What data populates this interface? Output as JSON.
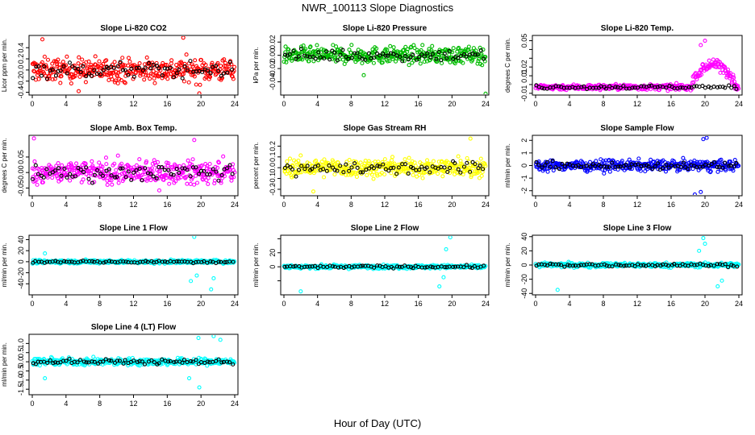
{
  "title": "NWR_100113  Slope Diagnostics",
  "xlabel": "Hour of Day (UTC)",
  "colors": {
    "overlay": "#000000"
  },
  "chart_data": [
    {
      "type": "scatter",
      "title": "Slope Li-820 CO2",
      "ylabel": "Licor ppm per min.",
      "color": "#ff0000",
      "xlim": [
        0,
        24
      ],
      "xticks": [
        0,
        4,
        8,
        12,
        16,
        20,
        24
      ],
      "ylim": [
        -0.45,
        0.62
      ],
      "yticks": [
        -0.4,
        -0.2,
        0.0,
        0.2,
        0.4
      ],
      "ytick_labels": [
        "-0.4",
        "-0.2",
        "0.0",
        "0.2",
        "0.4"
      ],
      "spread": 0.2,
      "excursions": [
        [
          1.2,
          0.55
        ],
        [
          17.9,
          0.58
        ],
        [
          19.8,
          -0.42
        ],
        [
          5.5,
          -0.38
        ]
      ]
    },
    {
      "type": "scatter",
      "title": "Slope Li-820 Pressure",
      "ylabel": "kPa per min.",
      "color": "#00bb00",
      "xlim": [
        0,
        24
      ],
      "xticks": [
        0,
        4,
        8,
        12,
        16,
        20,
        24
      ],
      "ylim": [
        -0.06,
        0.03
      ],
      "yticks": [
        -0.04,
        -0.02,
        0.0,
        0.02
      ],
      "ytick_labels": [
        "-0.04",
        "-0.02",
        "0.00",
        "0.02"
      ],
      "spread": 0.012,
      "excursions": [
        [
          24,
          -0.058
        ],
        [
          9.5,
          -0.03
        ]
      ]
    },
    {
      "type": "scatter",
      "title": "Slope Li-820 Temp.",
      "ylabel": "degrees C per min.",
      "color": "#ff00ff",
      "xlim": [
        0,
        24
      ],
      "xticks": [
        0,
        4,
        8,
        12,
        16,
        20,
        24
      ],
      "ylim": [
        -0.012,
        0.056
      ],
      "yticks": [
        -0.01,
        0.0,
        0.01,
        0.02,
        0.03,
        0.04,
        0.05
      ],
      "ytick_labels": [
        "-0.01",
        "",
        "0.01",
        "0.02",
        "",
        "",
        "0.05"
      ],
      "spread": 0.003,
      "center": -0.003,
      "excursions": [
        [
          20,
          0.05
        ],
        [
          19.5,
          0.045
        ]
      ]
    },
    {
      "type": "scatter",
      "title": "Slope Amb. Box Temp.",
      "ylabel": "degrees C per min.",
      "color": "#ff00ff",
      "xlim": [
        0,
        24
      ],
      "xticks": [
        0,
        4,
        8,
        12,
        16,
        20,
        24
      ],
      "ylim": [
        -0.075,
        0.12
      ],
      "yticks": [
        -0.05,
        0.0,
        0.05
      ],
      "ytick_labels": [
        "-0.05",
        "0.00",
        "0.05"
      ],
      "spread": 0.035,
      "excursions": [
        [
          0.2,
          0.11
        ],
        [
          19.2,
          0.105
        ]
      ]
    },
    {
      "type": "scatter",
      "title": "Slope Gas Stream RH",
      "ylabel": "percent per min.",
      "color": "#ffff00",
      "xlim": [
        0,
        24
      ],
      "xticks": [
        0,
        4,
        8,
        12,
        16,
        20,
        24
      ],
      "ylim": [
        -0.26,
        0.3
      ],
      "yticks": [
        -0.2,
        -0.1,
        0.0,
        0.1,
        0.2
      ],
      "ytick_labels": [
        "-0.2",
        "-0.1",
        "0.0",
        "0.1",
        "0.2"
      ],
      "spread": 0.08,
      "excursions": [
        [
          22.2,
          0.27
        ],
        [
          3.5,
          -0.22
        ]
      ]
    },
    {
      "type": "scatter",
      "title": "Slope Sample Flow",
      "ylabel": "ml/min per min.",
      "color": "#0000ff",
      "xlim": [
        0,
        24
      ],
      "xticks": [
        0,
        4,
        8,
        12,
        16,
        20,
        24
      ],
      "ylim": [
        -2.4,
        2.4
      ],
      "yticks": [
        -2,
        -1,
        0,
        1,
        2
      ],
      "ytick_labels": [
        "-2",
        "-1",
        "0",
        "1",
        "2"
      ],
      "spread": 0.4,
      "excursions": [
        [
          19.8,
          2.1
        ],
        [
          20.2,
          2.2
        ],
        [
          18.8,
          -2.3
        ],
        [
          19.5,
          -2.1
        ]
      ]
    },
    {
      "type": "scatter",
      "title": "Slope Line 1 Flow",
      "ylabel": "ml/min per min.",
      "color": "#00ffff",
      "xlim": [
        0,
        24
      ],
      "xticks": [
        0,
        4,
        8,
        12,
        16,
        20,
        24
      ],
      "ylim": [
        -60,
        48
      ],
      "yticks": [
        -40,
        -20,
        0,
        20,
        40
      ],
      "ytick_labels": [
        "-40",
        "-20",
        "0",
        "20",
        "40"
      ],
      "spread": 3,
      "excursions": [
        [
          19.2,
          45
        ],
        [
          18.8,
          -35
        ],
        [
          21.2,
          -50
        ],
        [
          21.5,
          -30
        ],
        [
          1.5,
          15
        ],
        [
          19.5,
          -25
        ]
      ]
    },
    {
      "type": "scatter",
      "title": "Slope Line 2 Flow",
      "ylabel": "ml/min per min.",
      "color": "#00ffff",
      "xlim": [
        0,
        24
      ],
      "xticks": [
        0,
        4,
        8,
        12,
        16,
        20,
        24
      ],
      "ylim": [
        -40,
        45
      ],
      "yticks": [
        -20,
        0,
        20,
        40
      ],
      "ytick_labels": [
        "",
        "0",
        "20",
        ""
      ],
      "spread": 2.5,
      "excursions": [
        [
          19.8,
          42
        ],
        [
          19.3,
          25
        ],
        [
          18.5,
          -28
        ],
        [
          2.0,
          -35
        ],
        [
          19.0,
          -15
        ]
      ]
    },
    {
      "type": "scatter",
      "title": "Slope Line 3 Flow",
      "ylabel": "ml/min per min.",
      "color": "#00ffff",
      "xlim": [
        0,
        24
      ],
      "xticks": [
        0,
        4,
        8,
        12,
        16,
        20,
        24
      ],
      "ylim": [
        -42,
        42
      ],
      "yticks": [
        -40,
        -20,
        0,
        20,
        40
      ],
      "ytick_labels": [
        "-40",
        "-20",
        "0",
        "20",
        "40"
      ],
      "spread": 3,
      "excursions": [
        [
          19.8,
          38
        ],
        [
          20.0,
          30
        ],
        [
          2.6,
          -35
        ],
        [
          21.5,
          -30
        ],
        [
          22.0,
          -22
        ],
        [
          19.3,
          20
        ]
      ]
    },
    {
      "type": "scatter",
      "title": "Slope Line 4 (LT) Flow",
      "ylabel": "ml/min per min.",
      "color": "#00ffff",
      "xlim": [
        0,
        24
      ],
      "xticks": [
        0,
        4,
        8,
        12,
        16,
        20,
        24
      ],
      "ylim": [
        -1.8,
        1.5
      ],
      "yticks": [
        -1.5,
        -1.0,
        -0.5,
        0.0,
        0.5,
        1.0
      ],
      "ytick_labels": [
        "-1.5",
        "-1.0",
        "-0.5",
        "0.0",
        "0.5",
        "1.0"
      ],
      "spread": 0.18,
      "excursions": [
        [
          19.7,
          1.3
        ],
        [
          21.5,
          1.4
        ],
        [
          19.8,
          -1.4
        ],
        [
          18.6,
          -0.9
        ],
        [
          1.5,
          -0.9
        ],
        [
          22.3,
          1.2
        ]
      ]
    }
  ]
}
